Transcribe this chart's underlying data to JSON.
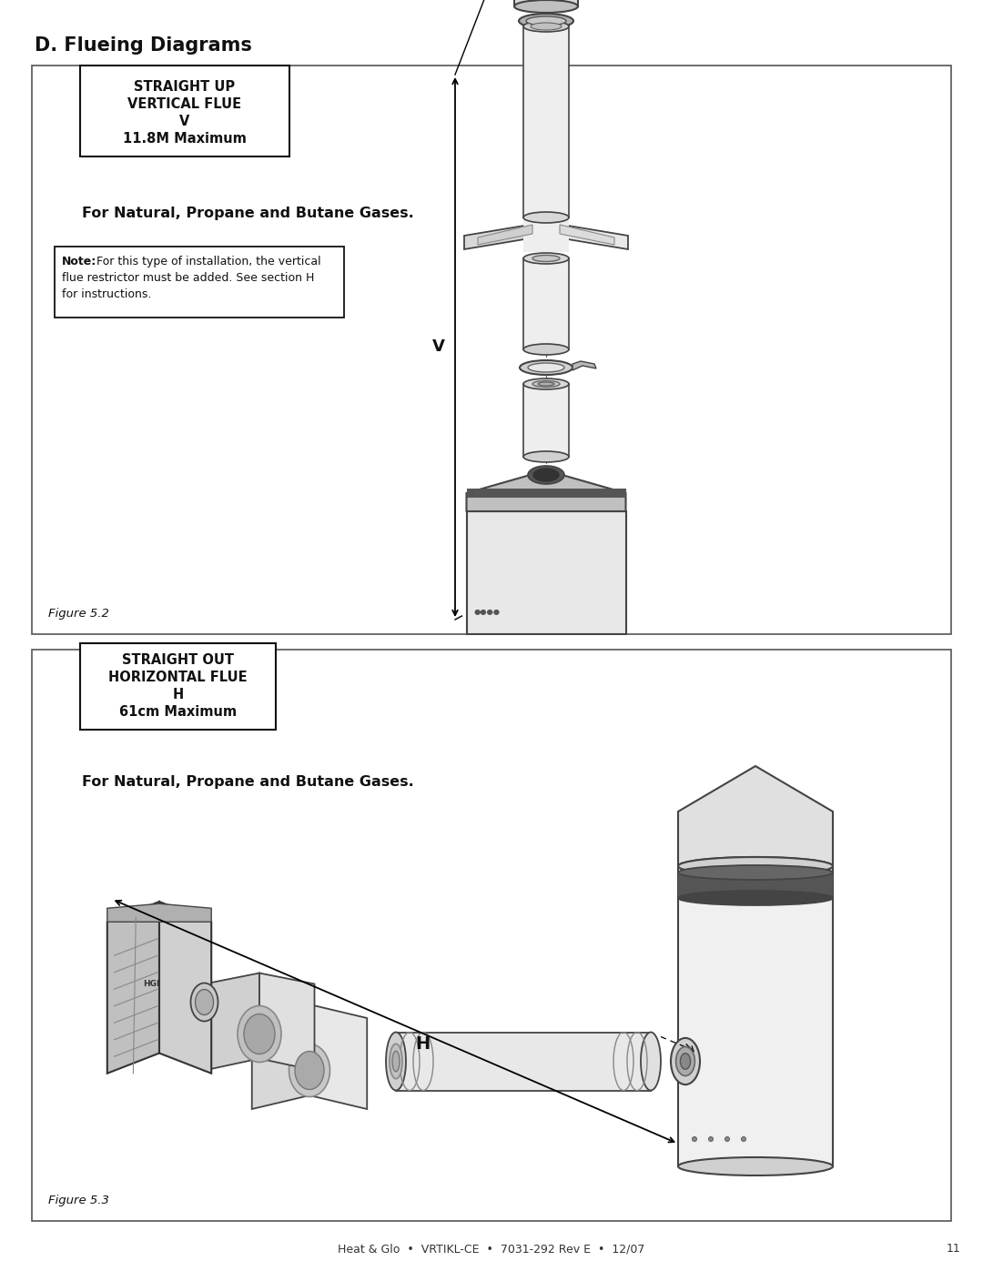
{
  "page_title": "D. Flueing Diagrams",
  "footer_text": "Heat & Glo  •  VRTIKL-CE  •  7031-292 Rev E  •  12/07",
  "footer_page": "11",
  "fig1_label": "Figure 5.2",
  "fig1_box_lines": [
    "STRAIGHT UP",
    "VERTICAL FLUE",
    "V",
    "11.8M Maximum"
  ],
  "fig1_subtitle": "For Natural, Propane and Butane Gases.",
  "fig1_note_bold": "Note:",
  "fig1_note_rest": " For this type of installation, the vertical\nflue restrictor must be added. See section H\nfor instructions.",
  "fig1_dim_label": "V",
  "fig2_label": "Figure 5.3",
  "fig2_box_lines": [
    "STRAIGHT OUT",
    "HORIZONTAL FLUE",
    "H",
    "61cm Maximum"
  ],
  "fig2_subtitle": "For Natural, Propane and Butane Gases.",
  "fig2_dim_label": "H",
  "bg_color": "#ffffff",
  "panel_edge_color": "#444444",
  "text_color": "#111111",
  "gray_light": "#e8e8e8",
  "gray_mid": "#c0c0c0",
  "gray_dark": "#888888",
  "gray_darkest": "#444444"
}
